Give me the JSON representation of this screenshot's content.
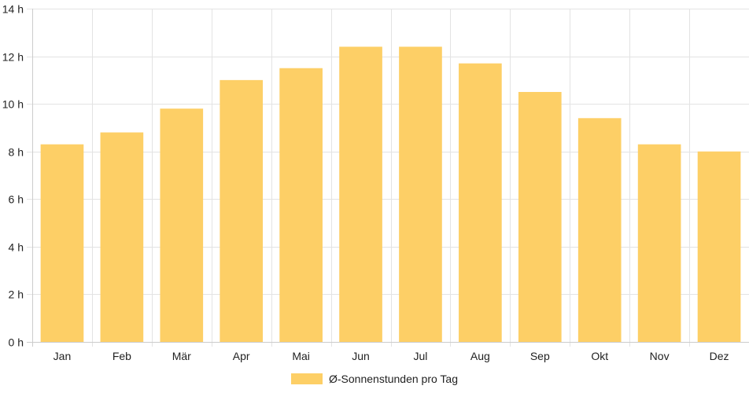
{
  "chart_data": {
    "type": "bar",
    "categories": [
      "Jan",
      "Feb",
      "Mär",
      "Apr",
      "Mai",
      "Jun",
      "Jul",
      "Aug",
      "Sep",
      "Okt",
      "Nov",
      "Dez"
    ],
    "series": [
      {
        "name": "Ø-Sonnenstunden pro Tag",
        "values": [
          8.3,
          8.8,
          9.8,
          11.0,
          11.5,
          12.4,
          12.4,
          11.7,
          10.5,
          9.4,
          8.3,
          8.0
        ]
      }
    ],
    "ylim": [
      0,
      14
    ],
    "yticks": [
      0,
      2,
      4,
      6,
      8,
      10,
      12,
      14
    ],
    "ytick_suffix": " h",
    "grid": true,
    "legend_position": "bottom",
    "bar_color": "#fdcf66"
  }
}
